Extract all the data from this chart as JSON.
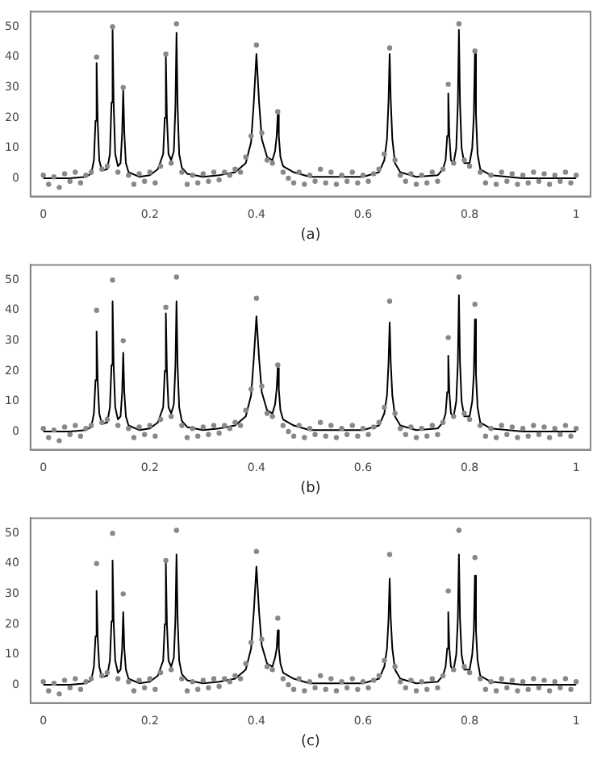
{
  "chart_data": [
    {
      "type": "scatter",
      "xlabel": "(a)",
      "xlim": [
        -0.024,
        1.027
      ],
      "xticks": [
        0,
        0.2,
        0.4,
        0.6,
        0.8,
        1
      ],
      "ylim": [
        -6,
        55
      ],
      "yticks": [
        0,
        10,
        20,
        30,
        40,
        50
      ],
      "grid": false,
      "legend": false,
      "series": [
        {
          "type": "scatter",
          "marker": "circle",
          "color": "#888888",
          "x": [
            0,
            0.01,
            0.02,
            0.03,
            0.04,
            0.05,
            0.06,
            0.07,
            0.08,
            0.09,
            0.1,
            0.11,
            0.12,
            0.13,
            0.14,
            0.15,
            0.16,
            0.17,
            0.18,
            0.19,
            0.2,
            0.21,
            0.22,
            0.23,
            0.24,
            0.25,
            0.26,
            0.27,
            0.28,
            0.29,
            0.3,
            0.31,
            0.32,
            0.33,
            0.34,
            0.35,
            0.36,
            0.37,
            0.38,
            0.39,
            0.4,
            0.41,
            0.42,
            0.43,
            0.44,
            0.45,
            0.46,
            0.47,
            0.48,
            0.49,
            0.5,
            0.51,
            0.52,
            0.53,
            0.54,
            0.55,
            0.56,
            0.57,
            0.58,
            0.59,
            0.6,
            0.61,
            0.62,
            0.63,
            0.64,
            0.65,
            0.66,
            0.67,
            0.68,
            0.69,
            0.7,
            0.71,
            0.72,
            0.73,
            0.74,
            0.75,
            0.76,
            0.77,
            0.78,
            0.79,
            0.8,
            0.81,
            0.82,
            0.83,
            0.84,
            0.85,
            0.86,
            0.87,
            0.88,
            0.89,
            0.9,
            0.91,
            0.92,
            0.93,
            0.94,
            0.95,
            0.96,
            0.97,
            0.98,
            0.99,
            1
          ],
          "values": [
            1,
            -2,
            0.5,
            -3,
            1.5,
            -1,
            2,
            -1.5,
            1,
            2,
            40,
            3,
            4,
            50,
            2,
            30,
            1,
            -2,
            1.5,
            -1,
            2,
            -1.5,
            4,
            41,
            5,
            51,
            2,
            -2,
            1,
            -1.5,
            1.5,
            -1,
            2,
            -0.5,
            2,
            1,
            3,
            2,
            7,
            14,
            44,
            15,
            6,
            5,
            22,
            2,
            0,
            -1.5,
            2,
            -2,
            1,
            -1,
            3,
            -1.5,
            2,
            -2,
            1,
            -1,
            2,
            -1.5,
            1,
            -1,
            1.5,
            3,
            8,
            43,
            6,
            1,
            -1,
            1.5,
            -2,
            1,
            -1.5,
            2,
            -1,
            3,
            31,
            5,
            51,
            6,
            4,
            42,
            2,
            -1.5,
            1,
            -2,
            2,
            -1,
            1.5,
            -2,
            1,
            -1.5,
            2,
            -1,
            1.5,
            -2,
            1,
            -1,
            2,
            -1.5,
            1
          ]
        },
        {
          "type": "line",
          "color": "#000000",
          "x": [
            0,
            0.05,
            0.08,
            0.09,
            0.095,
            0.098,
            0.1,
            0.102,
            0.105,
            0.11,
            0.12,
            0.125,
            0.128,
            0.13,
            0.132,
            0.135,
            0.14,
            0.145,
            0.148,
            0.15,
            0.152,
            0.155,
            0.16,
            0.18,
            0.2,
            0.215,
            0.225,
            0.228,
            0.23,
            0.232,
            0.235,
            0.24,
            0.245,
            0.248,
            0.25,
            0.252,
            0.255,
            0.26,
            0.27,
            0.3,
            0.33,
            0.36,
            0.38,
            0.39,
            0.395,
            0.4,
            0.405,
            0.41,
            0.42,
            0.43,
            0.435,
            0.438,
            0.44,
            0.442,
            0.445,
            0.45,
            0.47,
            0.5,
            0.6,
            0.63,
            0.64,
            0.645,
            0.648,
            0.65,
            0.652,
            0.655,
            0.66,
            0.67,
            0.7,
            0.74,
            0.75,
            0.755,
            0.758,
            0.76,
            0.762,
            0.765,
            0.77,
            0.775,
            0.778,
            0.78,
            0.782,
            0.785,
            0.79,
            0.8,
            0.805,
            0.808,
            0.81,
            0.812,
            0.815,
            0.82,
            0.84,
            0.9,
            1
          ],
          "values": [
            0,
            0,
            0.5,
            1.5,
            6,
            19,
            38,
            19,
            6,
            2.5,
            3,
            8,
            25,
            49,
            25,
            8,
            4,
            5,
            15,
            29,
            15,
            5,
            2,
            0.5,
            1,
            3,
            8,
            20,
            40,
            20,
            8,
            6,
            9,
            24,
            48,
            24,
            8,
            3.5,
            1.5,
            0.5,
            1,
            2,
            5,
            12,
            25,
            41,
            25,
            13,
            7,
            6,
            9,
            14,
            21,
            14,
            7,
            4,
            2,
            0.5,
            0.5,
            2,
            6,
            13,
            26,
            41,
            26,
            13,
            5,
            2,
            0.5,
            1,
            3,
            6,
            14,
            28,
            14,
            6,
            5,
            10,
            25,
            49,
            25,
            10,
            5,
            5,
            10,
            21,
            41,
            21,
            8,
            3,
            1,
            0,
            0
          ]
        }
      ]
    },
    {
      "type": "scatter",
      "xlabel": "(b)",
      "xlim": [
        -0.024,
        1.027
      ],
      "xticks": [
        0,
        0.2,
        0.4,
        0.6,
        0.8,
        1
      ],
      "ylim": [
        -6,
        55
      ],
      "yticks": [
        0,
        10,
        20,
        30,
        40,
        50
      ],
      "grid": false,
      "legend": false,
      "series": [
        {
          "type": "scatter",
          "marker": "circle",
          "color": "#888888",
          "x": [
            0,
            0.01,
            0.02,
            0.03,
            0.04,
            0.05,
            0.06,
            0.07,
            0.08,
            0.09,
            0.1,
            0.11,
            0.12,
            0.13,
            0.14,
            0.15,
            0.16,
            0.17,
            0.18,
            0.19,
            0.2,
            0.21,
            0.22,
            0.23,
            0.24,
            0.25,
            0.26,
            0.27,
            0.28,
            0.29,
            0.3,
            0.31,
            0.32,
            0.33,
            0.34,
            0.35,
            0.36,
            0.37,
            0.38,
            0.39,
            0.4,
            0.41,
            0.42,
            0.43,
            0.44,
            0.45,
            0.46,
            0.47,
            0.48,
            0.49,
            0.5,
            0.51,
            0.52,
            0.53,
            0.54,
            0.55,
            0.56,
            0.57,
            0.58,
            0.59,
            0.6,
            0.61,
            0.62,
            0.63,
            0.64,
            0.65,
            0.66,
            0.67,
            0.68,
            0.69,
            0.7,
            0.71,
            0.72,
            0.73,
            0.74,
            0.75,
            0.76,
            0.77,
            0.78,
            0.79,
            0.8,
            0.81,
            0.82,
            0.83,
            0.84,
            0.85,
            0.86,
            0.87,
            0.88,
            0.89,
            0.9,
            0.91,
            0.92,
            0.93,
            0.94,
            0.95,
            0.96,
            0.97,
            0.98,
            0.99,
            1
          ],
          "values": [
            1,
            -2,
            0.5,
            -3,
            1.5,
            -1,
            2,
            -1.5,
            1,
            2,
            40,
            3,
            4,
            50,
            2,
            30,
            1,
            -2,
            1.5,
            -1,
            2,
            -1.5,
            4,
            41,
            5,
            51,
            2,
            -2,
            1,
            -1.5,
            1.5,
            -1,
            2,
            -0.5,
            2,
            1,
            3,
            2,
            7,
            14,
            44,
            15,
            6,
            5,
            22,
            2,
            0,
            -1.5,
            2,
            -2,
            1,
            -1,
            3,
            -1.5,
            2,
            -2,
            1,
            -1,
            2,
            -1.5,
            1,
            -1,
            1.5,
            3,
            8,
            43,
            6,
            1,
            -1,
            1.5,
            -2,
            1,
            -1.5,
            2,
            -1,
            3,
            31,
            5,
            51,
            6,
            4,
            42,
            2,
            -1.5,
            1,
            -2,
            2,
            -1,
            1.5,
            -2,
            1,
            -1.5,
            2,
            -1,
            1.5,
            -2,
            1,
            -1,
            2,
            -1.5,
            1
          ]
        },
        {
          "type": "line",
          "color": "#000000",
          "x": [
            0,
            0.05,
            0.08,
            0.09,
            0.095,
            0.098,
            0.1,
            0.102,
            0.105,
            0.11,
            0.12,
            0.125,
            0.128,
            0.13,
            0.132,
            0.135,
            0.14,
            0.145,
            0.148,
            0.15,
            0.152,
            0.155,
            0.16,
            0.18,
            0.2,
            0.215,
            0.225,
            0.228,
            0.23,
            0.232,
            0.235,
            0.24,
            0.245,
            0.248,
            0.25,
            0.252,
            0.255,
            0.26,
            0.27,
            0.3,
            0.33,
            0.36,
            0.38,
            0.39,
            0.395,
            0.4,
            0.405,
            0.41,
            0.42,
            0.43,
            0.435,
            0.438,
            0.44,
            0.442,
            0.445,
            0.45,
            0.47,
            0.5,
            0.6,
            0.63,
            0.64,
            0.645,
            0.648,
            0.65,
            0.652,
            0.655,
            0.66,
            0.67,
            0.7,
            0.74,
            0.75,
            0.755,
            0.758,
            0.76,
            0.762,
            0.765,
            0.77,
            0.775,
            0.778,
            0.78,
            0.782,
            0.785,
            0.79,
            0.8,
            0.805,
            0.808,
            0.81,
            0.812,
            0.815,
            0.82,
            0.84,
            0.9,
            1
          ],
          "values": [
            0,
            0,
            0.5,
            1.5,
            6,
            17,
            33,
            17,
            6,
            2.5,
            3,
            8,
            22,
            43,
            22,
            8,
            4,
            5,
            13,
            26,
            13,
            5,
            2,
            0.5,
            1,
            3,
            8,
            20,
            39,
            20,
            8,
            6,
            9,
            22,
            43,
            22,
            8,
            3.5,
            1.5,
            0.5,
            1,
            2,
            5,
            12,
            24,
            38,
            24,
            13,
            7,
            6,
            9,
            14,
            21,
            14,
            7,
            4,
            2,
            0.5,
            0.5,
            2,
            6,
            12,
            23,
            36,
            23,
            12,
            5,
            2,
            0.5,
            1,
            3,
            6,
            13,
            25,
            13,
            6,
            5,
            10,
            23,
            45,
            23,
            10,
            5,
            5,
            10,
            19,
            37,
            19,
            8,
            3,
            1,
            0,
            0
          ]
        }
      ]
    },
    {
      "type": "scatter",
      "xlabel": "(c)",
      "xlim": [
        -0.024,
        1.027
      ],
      "xticks": [
        0,
        0.2,
        0.4,
        0.6,
        0.8,
        1
      ],
      "ylim": [
        -6,
        55
      ],
      "yticks": [
        0,
        10,
        20,
        30,
        40,
        50
      ],
      "grid": false,
      "legend": false,
      "series": [
        {
          "type": "scatter",
          "marker": "circle",
          "color": "#888888",
          "x": [
            0,
            0.01,
            0.02,
            0.03,
            0.04,
            0.05,
            0.06,
            0.07,
            0.08,
            0.09,
            0.1,
            0.11,
            0.12,
            0.13,
            0.14,
            0.15,
            0.16,
            0.17,
            0.18,
            0.19,
            0.2,
            0.21,
            0.22,
            0.23,
            0.24,
            0.25,
            0.26,
            0.27,
            0.28,
            0.29,
            0.3,
            0.31,
            0.32,
            0.33,
            0.34,
            0.35,
            0.36,
            0.37,
            0.38,
            0.39,
            0.4,
            0.41,
            0.42,
            0.43,
            0.44,
            0.45,
            0.46,
            0.47,
            0.48,
            0.49,
            0.5,
            0.51,
            0.52,
            0.53,
            0.54,
            0.55,
            0.56,
            0.57,
            0.58,
            0.59,
            0.6,
            0.61,
            0.62,
            0.63,
            0.64,
            0.65,
            0.66,
            0.67,
            0.68,
            0.69,
            0.7,
            0.71,
            0.72,
            0.73,
            0.74,
            0.75,
            0.76,
            0.77,
            0.78,
            0.79,
            0.8,
            0.81,
            0.82,
            0.83,
            0.84,
            0.85,
            0.86,
            0.87,
            0.88,
            0.89,
            0.9,
            0.91,
            0.92,
            0.93,
            0.94,
            0.95,
            0.96,
            0.97,
            0.98,
            0.99,
            1
          ],
          "values": [
            1,
            -2,
            0.5,
            -3,
            1.5,
            -1,
            2,
            -1.5,
            1,
            2,
            40,
            3,
            4,
            50,
            2,
            30,
            1,
            -2,
            1.5,
            -1,
            2,
            -1.5,
            4,
            41,
            5,
            51,
            2,
            -2,
            1,
            -1.5,
            1.5,
            -1,
            2,
            -0.5,
            2,
            1,
            3,
            2,
            7,
            14,
            44,
            15,
            6,
            5,
            22,
            2,
            0,
            -1.5,
            2,
            -2,
            1,
            -1,
            3,
            -1.5,
            2,
            -2,
            1,
            -1,
            2,
            -1.5,
            1,
            -1,
            1.5,
            3,
            8,
            43,
            6,
            1,
            -1,
            1.5,
            -2,
            1,
            -1.5,
            2,
            -1,
            3,
            31,
            5,
            51,
            6,
            4,
            42,
            2,
            -1.5,
            1,
            -2,
            2,
            -1,
            1.5,
            -2,
            1,
            -1.5,
            2,
            -1,
            1.5,
            -2,
            1,
            -1,
            2,
            -1.5,
            1
          ]
        },
        {
          "type": "line",
          "color": "#000000",
          "x": [
            0,
            0.05,
            0.08,
            0.09,
            0.095,
            0.098,
            0.1,
            0.102,
            0.105,
            0.11,
            0.12,
            0.125,
            0.128,
            0.13,
            0.132,
            0.135,
            0.14,
            0.145,
            0.148,
            0.15,
            0.152,
            0.155,
            0.16,
            0.18,
            0.2,
            0.215,
            0.225,
            0.228,
            0.23,
            0.232,
            0.235,
            0.24,
            0.245,
            0.248,
            0.25,
            0.252,
            0.255,
            0.26,
            0.27,
            0.3,
            0.33,
            0.36,
            0.38,
            0.39,
            0.395,
            0.4,
            0.405,
            0.41,
            0.42,
            0.43,
            0.435,
            0.438,
            0.44,
            0.442,
            0.445,
            0.45,
            0.47,
            0.5,
            0.6,
            0.63,
            0.64,
            0.645,
            0.648,
            0.65,
            0.652,
            0.655,
            0.66,
            0.67,
            0.7,
            0.74,
            0.75,
            0.755,
            0.758,
            0.76,
            0.762,
            0.765,
            0.77,
            0.775,
            0.778,
            0.78,
            0.782,
            0.785,
            0.79,
            0.8,
            0.805,
            0.808,
            0.81,
            0.812,
            0.815,
            0.82,
            0.84,
            0.9,
            1
          ],
          "values": [
            0,
            0,
            0.5,
            1.5,
            6,
            16,
            31,
            16,
            6,
            2.5,
            3,
            8,
            21,
            41,
            21,
            8,
            4,
            5,
            12,
            24,
            12,
            5,
            2,
            0.5,
            1,
            3,
            8,
            20,
            40,
            20,
            8,
            6,
            9,
            22,
            43,
            22,
            8,
            3.5,
            1.5,
            0.5,
            1,
            2,
            5,
            12,
            24,
            39,
            24,
            13,
            7,
            6,
            9,
            12,
            18,
            12,
            7,
            4,
            2,
            0.5,
            0.5,
            2,
            6,
            12,
            22,
            35,
            22,
            12,
            5,
            2,
            0.5,
            1,
            3,
            6,
            12,
            24,
            12,
            6,
            5,
            10,
            22,
            43,
            22,
            10,
            5,
            5,
            10,
            18,
            36,
            18,
            8,
            3,
            1,
            0,
            0
          ]
        }
      ]
    }
  ]
}
